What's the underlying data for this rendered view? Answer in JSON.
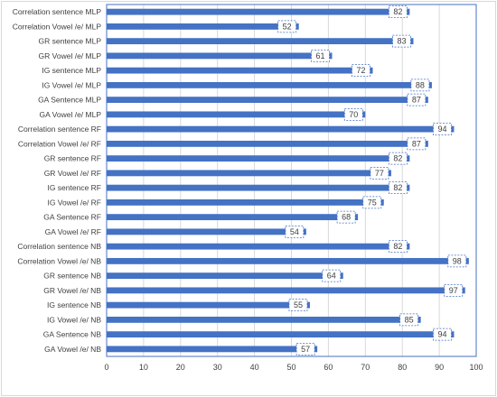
{
  "chart_data": {
    "type": "bar",
    "orientation": "horizontal",
    "title": "",
    "xlabel": "",
    "ylabel": "",
    "xlim": [
      0,
      100
    ],
    "xticks": [
      0,
      10,
      20,
      30,
      40,
      50,
      60,
      70,
      80,
      90,
      100
    ],
    "grid": true,
    "bar_color": "#4472c4",
    "categories": [
      "Correlation sentence MLP",
      "Correlation Vowel /e/ MLP",
      "GR sentence MLP",
      "GR Vowel /e/ MLP",
      "IG sentence MLP",
      "IG Vowel /e/ MLP",
      "GA Sentence MLP",
      "GA Vowel /e/ MLP",
      "Correlation sentence RF",
      "Correlation Vowel /e/ RF",
      "GR sentence RF",
      "GR Vowel /e/ RF",
      "IG sentence RF",
      "IG Vowel /e/ RF",
      "GA Sentence RF",
      "GA Vowel /e/ RF",
      "Correlation sentence NB",
      "Correlation Vowel /e/ NB",
      "GR sentence NB",
      "GR Vowel /e/ NB",
      "IG sentence NB",
      "IG Vowel /e/ NB",
      "GA Sentence NB",
      "GA Vowel /e/ NB"
    ],
    "values": [
      82,
      52,
      83,
      61,
      72,
      88,
      87,
      70,
      94,
      87,
      82,
      77,
      82,
      75,
      68,
      54,
      82,
      98,
      64,
      97,
      55,
      85,
      94,
      57
    ]
  }
}
